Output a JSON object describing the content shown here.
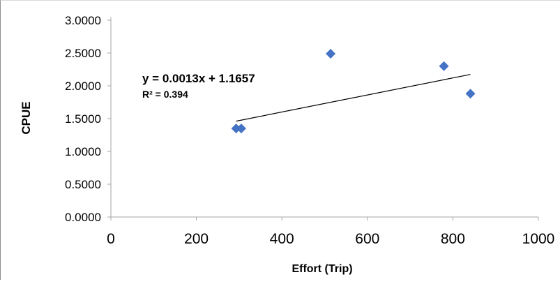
{
  "chart_data": {
    "type": "scatter",
    "xlabel": "Effort (Trip)",
    "ylabel": "CPUE",
    "xlim": [
      0,
      1000
    ],
    "ylim": [
      0,
      3
    ],
    "x_ticks": [
      0,
      200,
      400,
      600,
      800,
      1000
    ],
    "x_tick_labels": [
      "0",
      "200",
      "400",
      "600",
      "800",
      "1000"
    ],
    "y_ticks": [
      0,
      0.5,
      1,
      1.5,
      2,
      2.5,
      3
    ],
    "y_tick_labels": [
      "0.0000",
      "0.5000",
      "1.0000",
      "1.5000",
      "2.0000",
      "2.5000",
      "3.0000"
    ],
    "grid": false,
    "marker": "diamond",
    "marker_color": "#4472c4",
    "trendline_color": "#000000",
    "points": [
      {
        "x": 293,
        "y": 1.35
      },
      {
        "x": 305,
        "y": 1.35
      },
      {
        "x": 514,
        "y": 2.49
      },
      {
        "x": 779,
        "y": 2.3
      },
      {
        "x": 841,
        "y": 1.88
      }
    ],
    "trendline": {
      "type": "linear",
      "x_start": 293,
      "x_end": 841,
      "slope": 0.0013,
      "intercept": 1.1657,
      "equation": "y = 0.0013x + 1.1657",
      "r_squared": "R² = 0.394"
    }
  }
}
